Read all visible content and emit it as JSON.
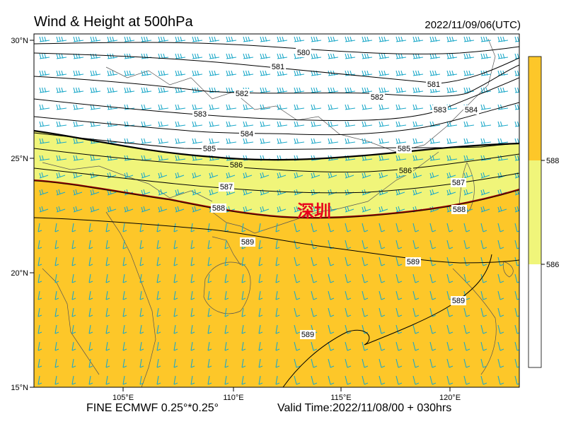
{
  "title": "Wind & Height at 500hPa",
  "datetime": "2022/11/09/06(UTC)",
  "footer": {
    "model": "FINE ECMWF 0.25°*0.25°",
    "valid": "Valid Time:2022/11/08/00 + 030hrs"
  },
  "city_label": "深圳",
  "axes": {
    "lon_ticks": [
      "105°E",
      "110°E",
      "115°E",
      "120°E"
    ],
    "lat_ticks": [
      "30°N",
      "25°N",
      "20°N",
      "15°N"
    ]
  },
  "colorbar": {
    "labels": [
      "588",
      "586"
    ],
    "colors": {
      "above_588": "#fdc729",
      "586_588": "#f0f57a",
      "below_586": "#ffffff"
    }
  },
  "colors": {
    "land_fill": "#fdc729",
    "band_fill": "#f0f57a",
    "barb": "#1da9c9",
    "contour_588": "#8b0000"
  },
  "contours": [
    {
      "value": "580"
    },
    {
      "value": "581"
    },
    {
      "value": "582"
    },
    {
      "value": "583"
    },
    {
      "value": "584"
    },
    {
      "value": "585"
    },
    {
      "value": "586"
    },
    {
      "value": "587"
    },
    {
      "value": "588"
    },
    {
      "value": "589"
    }
  ]
}
